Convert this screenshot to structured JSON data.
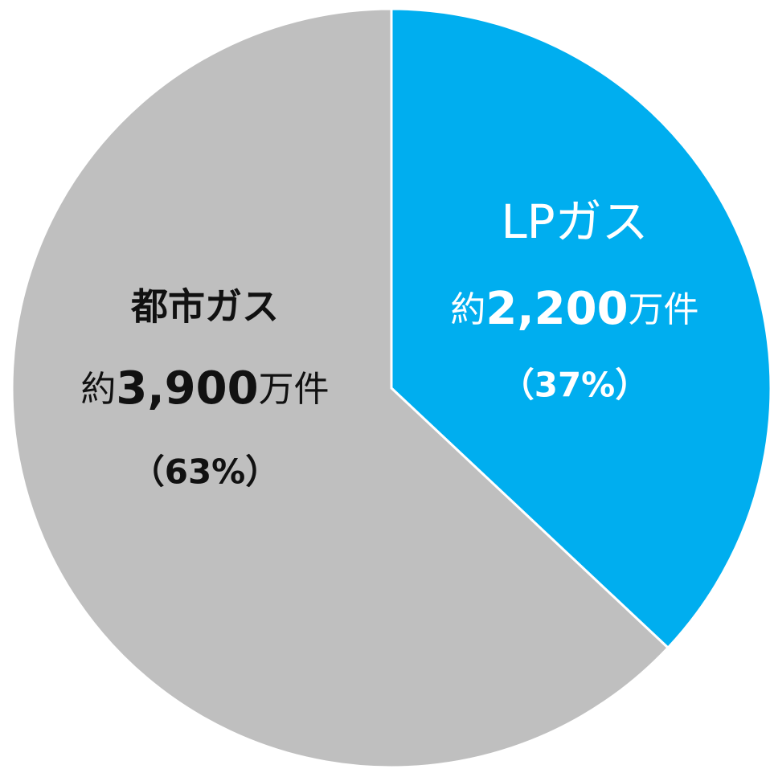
{
  "chart_data": {
    "type": "pie",
    "categories": [
      "LPガス",
      "都市ガス"
    ],
    "values": [
      37,
      63
    ],
    "value_labels": [
      "（37%）",
      "（63%）"
    ],
    "counts": [
      {
        "prefix": "約",
        "number": "2,200",
        "suffix": "万件"
      },
      {
        "prefix": "約",
        "number": "3,900",
        "suffix": "万件"
      }
    ],
    "colors": [
      "#00aeef",
      "#bfbfbf"
    ],
    "label_colors": [
      "#ffffff",
      "#111111"
    ],
    "start_angle": 0,
    "direction": "clockwise"
  }
}
